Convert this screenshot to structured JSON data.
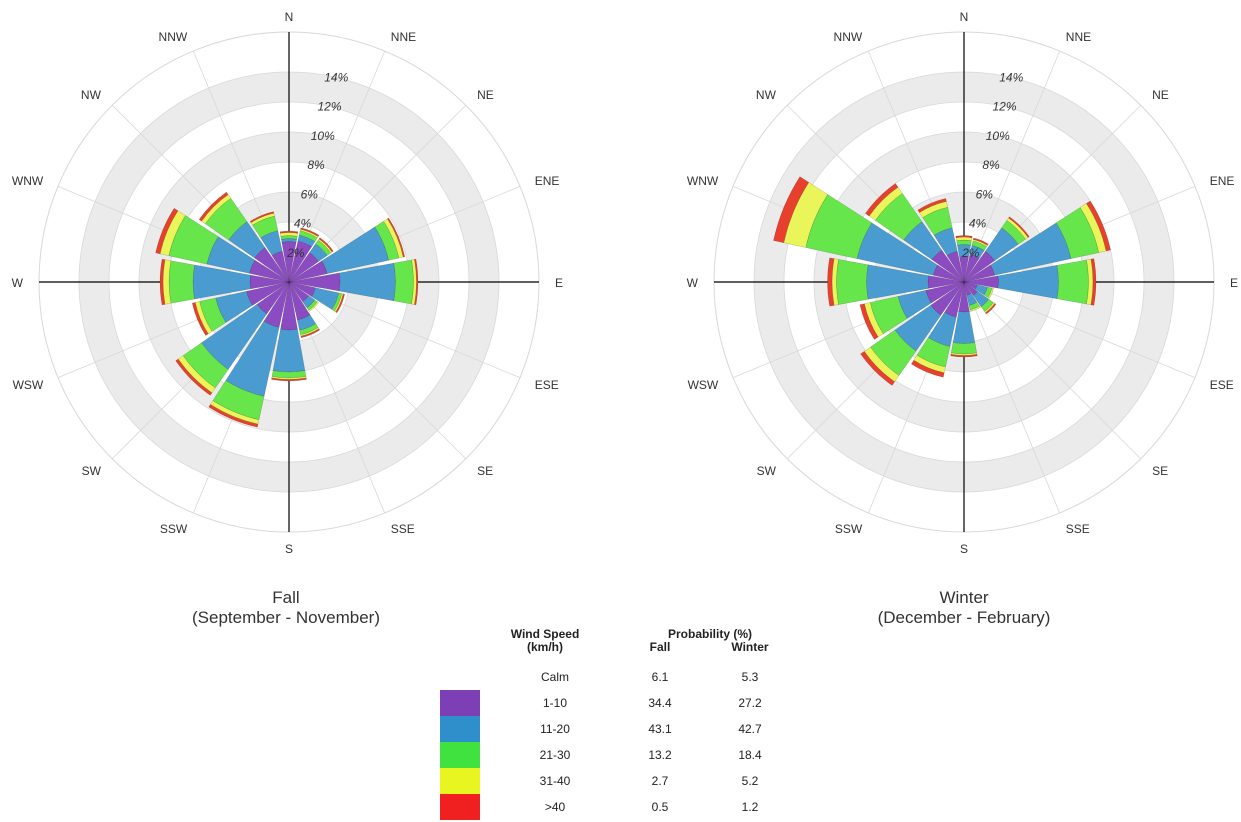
{
  "chart_data": [
    {
      "type": "windrose",
      "title": "Fall",
      "subtitle": "(September - November)",
      "directions": [
        "N",
        "NNE",
        "NE",
        "ENE",
        "E",
        "ESE",
        "SE",
        "SSE",
        "S",
        "SSW",
        "SW",
        "WSW",
        "W",
        "WNW",
        "NW",
        "NNW"
      ],
      "radial_ticks": [
        "2%",
        "4%",
        "6%",
        "8%",
        "10%",
        "12%",
        "14%"
      ],
      "radial_max": 14,
      "speed_bins": [
        "1-10",
        "11-20",
        "21-30",
        "31-40",
        ">40"
      ],
      "cumulative_pct": [
        [
          2.7,
          2.9,
          3.1,
          3.3,
          3.4
        ],
        [
          2.8,
          3.2,
          3.5,
          3.6,
          3.7
        ],
        [
          2.4,
          3.1,
          3.4,
          3.5,
          3.6
        ],
        [
          2.6,
          6.8,
          7.5,
          7.8,
          7.9
        ],
        [
          3.4,
          7.1,
          8.3,
          8.5,
          8.6
        ],
        [
          1.8,
          3.4,
          3.6,
          3.7,
          3.8
        ],
        [
          1.6,
          2.1,
          2.3,
          2.4,
          2.4
        ],
        [
          2.6,
          3.3,
          3.6,
          3.7,
          3.8
        ],
        [
          3.2,
          6.0,
          6.4,
          6.5,
          6.6
        ],
        [
          3.1,
          7.8,
          9.4,
          9.7,
          9.9
        ],
        [
          2.6,
          7.1,
          8.6,
          9.0,
          9.2
        ],
        [
          2.9,
          5.0,
          6.1,
          6.4,
          6.6
        ],
        [
          2.6,
          6.4,
          8.0,
          8.4,
          8.6
        ],
        [
          2.7,
          5.6,
          8.2,
          8.8,
          9.1
        ],
        [
          2.8,
          4.9,
          6.8,
          7.1,
          7.3
        ],
        [
          2.1,
          3.5,
          4.5,
          4.7,
          4.8
        ]
      ]
    },
    {
      "type": "windrose",
      "title": "Winter",
      "subtitle": "(December - February)",
      "directions": [
        "N",
        "NNE",
        "NE",
        "ENE",
        "E",
        "ESE",
        "SE",
        "SSE",
        "S",
        "SSW",
        "SW",
        "WSW",
        "W",
        "WNW",
        "NW",
        "NNW"
      ],
      "radial_ticks": [
        "2%",
        "4%",
        "6%",
        "8%",
        "10%",
        "12%",
        "14%"
      ],
      "radial_max": 14,
      "speed_bins": [
        "1-10",
        "11-20",
        "21-30",
        "31-40",
        ">40"
      ],
      "cumulative_pct": [
        [
          1.7,
          2.5,
          2.8,
          3.0,
          3.1
        ],
        [
          1.9,
          2.5,
          2.8,
          2.9,
          3.0
        ],
        [
          2.5,
          4.4,
          5.0,
          5.2,
          5.3
        ],
        [
          2.1,
          7.3,
          9.2,
          9.7,
          10.0
        ],
        [
          2.3,
          6.3,
          8.3,
          8.6,
          8.8
        ],
        [
          0.9,
          1.6,
          1.9,
          2.0,
          2.0
        ],
        [
          1.1,
          2.0,
          2.4,
          2.5,
          2.6
        ],
        [
          0.9,
          1.6,
          1.9,
          2.0,
          2.0
        ],
        [
          2.0,
          4.1,
          4.8,
          4.9,
          5.0
        ],
        [
          2.4,
          4.4,
          5.8,
          6.2,
          6.5
        ],
        [
          2.7,
          5.6,
          7.6,
          8.1,
          8.4
        ],
        [
          2.6,
          4.5,
          6.4,
          6.8,
          7.1
        ],
        [
          2.4,
          6.5,
          8.5,
          8.8,
          9.1
        ],
        [
          2.1,
          7.3,
          10.8,
          12.3,
          13.0
        ],
        [
          2.6,
          4.9,
          7.2,
          7.7,
          8.0
        ],
        [
          2.1,
          3.7,
          5.1,
          5.5,
          5.7
        ]
      ]
    }
  ],
  "legend": {
    "speed_header_line1": "Wind Speed",
    "speed_header_line2": "(km/h)",
    "prob_header": "Probability (%)",
    "fall_header": "Fall",
    "winter_header": "Winter",
    "rows": [
      {
        "speed": "Calm",
        "fall": "6.1",
        "winter": "5.3",
        "color": ""
      },
      {
        "speed": "1-10",
        "fall": "34.4",
        "winter": "27.2",
        "color": "#7d3fb5"
      },
      {
        "speed": "11-20",
        "fall": "43.1",
        "winter": "42.7",
        "color": "#2f8fca"
      },
      {
        "speed": "21-30",
        "fall": "13.2",
        "winter": "18.4",
        "color": "#3fe23f"
      },
      {
        "speed": "31-40",
        "fall": "2.7",
        "winter": "5.2",
        "color": "#e8f520"
      },
      {
        "speed": ">40",
        "fall": "0.5",
        "winter": "1.2",
        "color": "#f02020"
      }
    ]
  },
  "colors": {
    "bin_fill": [
      "#8a4cc0",
      "#4a9cd0",
      "#66e64a",
      "#eaf55a",
      "#e8402c"
    ],
    "ring_band": "#ebebeb",
    "grid_line": "#d8d8d8",
    "axis_line": "#000000"
  }
}
